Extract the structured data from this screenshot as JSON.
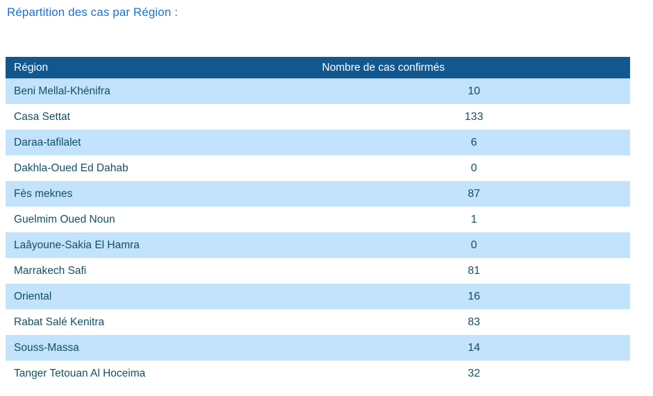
{
  "title": "Répartition des cas par Région :",
  "table": {
    "headers": {
      "region": "Région",
      "cases": "Nombre de cas confirmés"
    },
    "rows": [
      {
        "region": "Beni Mellal-Khénifra",
        "cases": "10"
      },
      {
        "region": "Casa Settat",
        "cases": "133"
      },
      {
        "region": "Daraa-tafilalet",
        "cases": "6"
      },
      {
        "region": "Dakhla-Oued Ed Dahab",
        "cases": "0"
      },
      {
        "region": "Fès meknes",
        "cases": "87"
      },
      {
        "region": "Guelmim Oued Noun",
        "cases": "1"
      },
      {
        "region": "Laâyoune-Sakia El Hamra",
        "cases": "0"
      },
      {
        "region": "Marrakech Safi",
        "cases": "81"
      },
      {
        "region": "Oriental",
        "cases": "16"
      },
      {
        "region": "Rabat Salé Kenitra",
        "cases": "83"
      },
      {
        "region": "Souss-Massa",
        "cases": "14"
      },
      {
        "region": "Tanger Tetouan Al Hoceima",
        "cases": "32"
      }
    ]
  },
  "colors": {
    "title_text": "#1c71c7",
    "header_bg": "#12588f",
    "header_text": "#ffffff",
    "row_alt_bg": "#c2e3fb",
    "row_bg": "#ffffff",
    "cell_text": "#144f60"
  },
  "chart_data": {
    "type": "table",
    "title": "Répartition des cas par Région :",
    "columns": [
      "Région",
      "Nombre de cas confirmés"
    ],
    "categories": [
      "Beni Mellal-Khénifra",
      "Casa Settat",
      "Daraa-tafilalet",
      "Dakhla-Oued Ed Dahab",
      "Fès meknes",
      "Guelmim Oued Noun",
      "Laâyoune-Sakia El Hamra",
      "Marrakech Safi",
      "Oriental",
      "Rabat Salé Kenitra",
      "Souss-Massa",
      "Tanger Tetouan Al Hoceima"
    ],
    "values": [
      10,
      133,
      6,
      0,
      87,
      1,
      0,
      81,
      16,
      83,
      14,
      32
    ]
  }
}
